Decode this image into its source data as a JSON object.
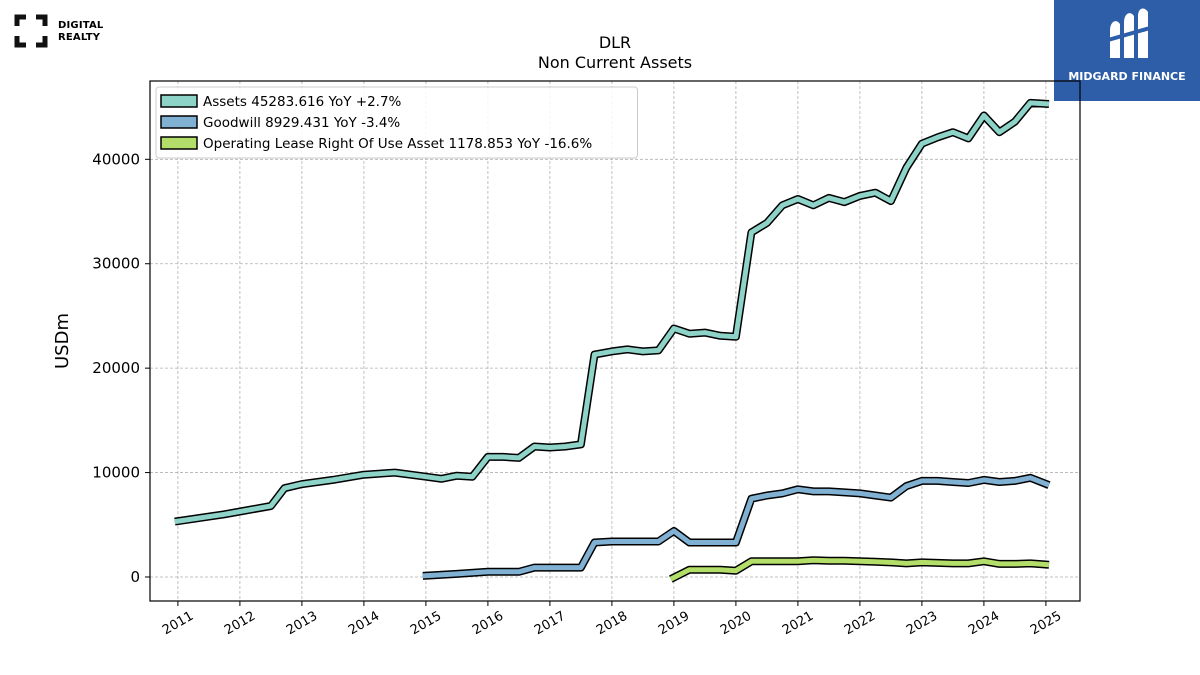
{
  "branding": {
    "left_logo_text_1": "DIGITAL",
    "left_logo_text_2": "REALTY",
    "right_logo_text": "MIDGARD FINANCE",
    "right_logo_color": "#2f5ea8"
  },
  "chart_data": {
    "type": "line",
    "title": "DLR",
    "subtitle": "Non Current  Assets",
    "xlabel": "",
    "ylabel": "USDm",
    "xlim": [
      2010.55,
      2025.55
    ],
    "ylim": [
      -2300,
      47500
    ],
    "yticks": [
      0,
      10000,
      20000,
      30000,
      40000
    ],
    "xticks": [
      "2011",
      "2012",
      "2013",
      "2014",
      "2015",
      "2016",
      "2017",
      "2018",
      "2019",
      "2020",
      "2021",
      "2022",
      "2023",
      "2024",
      "2025"
    ],
    "grid": true,
    "legend_position": "top-left",
    "series": [
      {
        "name": "Assets  45283.616 YoY +2.7%",
        "color": "#8dd3c7",
        "points": [
          [
            2010.95,
            5300
          ],
          [
            2011.75,
            6000
          ],
          [
            2012.5,
            6800
          ],
          [
            2012.72,
            8500
          ],
          [
            2013.0,
            8900
          ],
          [
            2013.5,
            9300
          ],
          [
            2014.0,
            9800
          ],
          [
            2014.5,
            10000
          ],
          [
            2015.0,
            9600
          ],
          [
            2015.25,
            9400
          ],
          [
            2015.5,
            9700
          ],
          [
            2015.75,
            9600
          ],
          [
            2016.0,
            11500
          ],
          [
            2016.25,
            11500
          ],
          [
            2016.5,
            11400
          ],
          [
            2016.75,
            12500
          ],
          [
            2017.0,
            12400
          ],
          [
            2017.25,
            12500
          ],
          [
            2017.5,
            12700
          ],
          [
            2017.72,
            21300
          ],
          [
            2018.0,
            21600
          ],
          [
            2018.25,
            21800
          ],
          [
            2018.5,
            21600
          ],
          [
            2018.75,
            21700
          ],
          [
            2019.0,
            23800
          ],
          [
            2019.25,
            23300
          ],
          [
            2019.5,
            23400
          ],
          [
            2019.75,
            23100
          ],
          [
            2020.0,
            23000
          ],
          [
            2020.25,
            33000
          ],
          [
            2020.5,
            33900
          ],
          [
            2020.75,
            35600
          ],
          [
            2021.0,
            36200
          ],
          [
            2021.25,
            35600
          ],
          [
            2021.5,
            36300
          ],
          [
            2021.75,
            35900
          ],
          [
            2022.0,
            36500
          ],
          [
            2022.25,
            36800
          ],
          [
            2022.5,
            36000
          ],
          [
            2022.75,
            39200
          ],
          [
            2023.0,
            41500
          ],
          [
            2023.25,
            42100
          ],
          [
            2023.5,
            42600
          ],
          [
            2023.75,
            42000
          ],
          [
            2024.0,
            44200
          ],
          [
            2024.25,
            42600
          ],
          [
            2024.5,
            43600
          ],
          [
            2024.75,
            45400
          ],
          [
            2025.05,
            45300
          ]
        ]
      },
      {
        "name": "Goodwill  8929.431 YoY -3.4%",
        "color": "#80b1d3",
        "points": [
          [
            2014.95,
            100
          ],
          [
            2015.5,
            300
          ],
          [
            2016.0,
            500
          ],
          [
            2016.25,
            500
          ],
          [
            2016.5,
            500
          ],
          [
            2016.75,
            900
          ],
          [
            2017.0,
            900
          ],
          [
            2017.25,
            900
          ],
          [
            2017.5,
            900
          ],
          [
            2017.72,
            3300
          ],
          [
            2018.0,
            3400
          ],
          [
            2018.25,
            3400
          ],
          [
            2018.5,
            3400
          ],
          [
            2018.75,
            3400
          ],
          [
            2019.0,
            4400
          ],
          [
            2019.25,
            3300
          ],
          [
            2019.5,
            3300
          ],
          [
            2019.75,
            3300
          ],
          [
            2020.0,
            3300
          ],
          [
            2020.25,
            7500
          ],
          [
            2020.5,
            7800
          ],
          [
            2020.75,
            8000
          ],
          [
            2021.0,
            8400
          ],
          [
            2021.25,
            8200
          ],
          [
            2021.5,
            8200
          ],
          [
            2021.75,
            8100
          ],
          [
            2022.0,
            8000
          ],
          [
            2022.25,
            7800
          ],
          [
            2022.5,
            7600
          ],
          [
            2022.75,
            8700
          ],
          [
            2023.0,
            9200
          ],
          [
            2023.25,
            9200
          ],
          [
            2023.5,
            9100
          ],
          [
            2023.75,
            9000
          ],
          [
            2024.0,
            9300
          ],
          [
            2024.25,
            9100
          ],
          [
            2024.5,
            9200
          ],
          [
            2024.75,
            9500
          ],
          [
            2025.05,
            8800
          ]
        ]
      },
      {
        "name": "Operating Lease Right Of Use Asset  1178.853 YoY -16.6%",
        "color": "#b3de69",
        "points": [
          [
            2018.95,
            -200
          ],
          [
            2019.25,
            700
          ],
          [
            2019.5,
            700
          ],
          [
            2019.75,
            700
          ],
          [
            2020.0,
            600
          ],
          [
            2020.25,
            1500
          ],
          [
            2020.5,
            1500
          ],
          [
            2020.75,
            1500
          ],
          [
            2021.0,
            1500
          ],
          [
            2021.25,
            1600
          ],
          [
            2021.5,
            1550
          ],
          [
            2021.75,
            1550
          ],
          [
            2022.0,
            1500
          ],
          [
            2022.25,
            1450
          ],
          [
            2022.5,
            1400
          ],
          [
            2022.75,
            1300
          ],
          [
            2023.0,
            1400
          ],
          [
            2023.25,
            1350
          ],
          [
            2023.5,
            1300
          ],
          [
            2023.75,
            1300
          ],
          [
            2024.0,
            1500
          ],
          [
            2024.25,
            1250
          ],
          [
            2024.5,
            1250
          ],
          [
            2024.75,
            1300
          ],
          [
            2025.05,
            1180
          ]
        ]
      }
    ]
  }
}
